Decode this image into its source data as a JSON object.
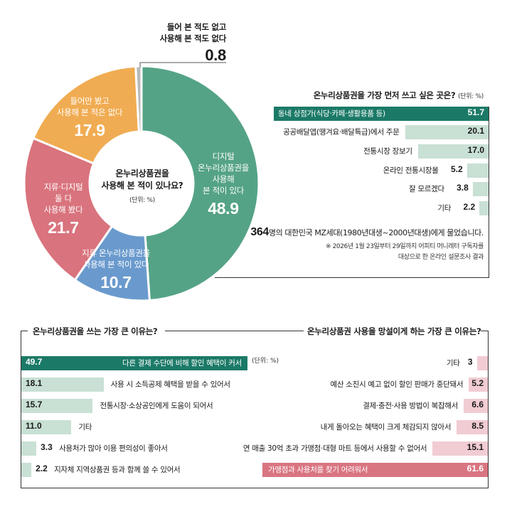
{
  "donut": {
    "center_question_line1": "온누리상품권을",
    "center_question_line2": "사용해 본 적이 있나요?",
    "unit": "(단위: %)",
    "slices": [
      {
        "label_lines": [
          "디지털",
          "온누리상품권을",
          "사용해",
          "본 적이 있다"
        ],
        "value": "48.9",
        "color": "#55a386"
      },
      {
        "label_lines": [
          "지류 온누리상품권을",
          "사용해 본 적이 있다"
        ],
        "value": "10.7",
        "color": "#6a9acd"
      },
      {
        "label_lines": [
          "지류·디지털",
          "둘 다",
          "사용해 봤다"
        ],
        "value": "21.7",
        "color": "#d9737d"
      },
      {
        "label_lines": [
          "들어만 봤고",
          "사용해 본 적은 없다"
        ],
        "value": "17.9",
        "color": "#f0ac52"
      },
      {
        "label_lines": [
          "들어 본 적도 없고",
          "사용해 본 적도 없다"
        ],
        "value": "0.8",
        "color": "#b9b9b9"
      }
    ]
  },
  "first_use": {
    "title": "온누리상품권을 가장 먼저 쓰고 싶은 곳은?",
    "unit": "(단위: %)",
    "items": [
      {
        "label": "동네 상점가(식당·카페·생활용품 등)",
        "value": "51.7"
      },
      {
        "label": "공공배달앱(땡겨요·배달특급)에서 주문",
        "value": "20.1"
      },
      {
        "label": "전통시장 장보기",
        "value": "17.0"
      },
      {
        "label": "온라인 전통시장몰",
        "value": "5.2"
      },
      {
        "label": "잘 모르겠다",
        "value": "3.8"
      },
      {
        "label": "기타",
        "value": "2.2"
      }
    ]
  },
  "survey_note": {
    "count": "364",
    "headline": "명의 대한민국 MZ세대(1980년대생~2000년대생)에게 물었습니다.",
    "note_line1": "※ 2026년 1월 23일부터 29일까지 어피티 머니레터 구독자를",
    "note_line2": "대상으로 한 온라인 설문조사 결과"
  },
  "use_reasons": {
    "title": "온누리상품권을 쓰는 가장 큰 이유는?",
    "unit": "(단위: %)",
    "items": [
      {
        "label": "다른 결제 수단에 비해 할인 혜택이 커서",
        "value": "49.7"
      },
      {
        "label": "사용 시 소득공제 혜택을 받을 수 있어서",
        "value": "18.1"
      },
      {
        "label": "전통시장·소상공인에게 도움이 되어서",
        "value": "15.7"
      },
      {
        "label": "기타",
        "value": "11.0"
      },
      {
        "label": "사용처가 많아 이용 편의성이 좋아서",
        "value": "3.3"
      },
      {
        "label": "지자체 지역상품권 등과 함께 쓸 수 있어서",
        "value": "2.2"
      }
    ]
  },
  "hesitate_reasons": {
    "title": "온누리상품권 사용을 망설이게 하는 가장 큰 이유는?",
    "items": [
      {
        "label": "기타",
        "value": "3"
      },
      {
        "label": "예산 소진시 예고 없이 할인 판매가 중단돼서",
        "value": "5.2"
      },
      {
        "label": "결제·충전·사용 방법이 복잡해서",
        "value": "6.6"
      },
      {
        "label": "내게 돌아오는 혜택이 크게 체감되지 않아서",
        "value": "8.5"
      },
      {
        "label": "연 매출 30억 초과 가맹점·대형 마트 등에서 사용할 수 없어서",
        "value": "15.1"
      },
      {
        "label": "가맹점과 사용처를 찾기 어려워서",
        "value": "61.6"
      }
    ]
  },
  "colors": {
    "green_dark": "#1b7a67",
    "green_light": "#c9e0d5",
    "pink_dark": "#d97581",
    "pink_light": "#f1ccd3"
  },
  "chart_data": [
    {
      "type": "pie",
      "title": "온누리상품권을 사용해 본 적이 있나요? (단위: %)",
      "categories": [
        "디지털 온누리상품권을 사용해 본 적이 있다",
        "지류 온누리상품권을 사용해 본 적이 있다",
        "지류·디지털 둘 다 사용해 봤다",
        "들어만 봤고 사용해 본 적은 없다",
        "들어 본 적도 없고 사용해 본 적도 없다"
      ],
      "values": [
        48.9,
        10.7,
        21.7,
        17.9,
        0.8
      ],
      "colors": [
        "#55a386",
        "#6a9acd",
        "#d9737d",
        "#f0ac52",
        "#b9b9b9"
      ],
      "donut": true
    },
    {
      "type": "bar",
      "orientation": "horizontal",
      "title": "온누리상품권을 가장 먼저 쓰고 싶은 곳은? (단위: %)",
      "categories": [
        "동네 상점가(식당·카페·생활용품 등)",
        "공공배달앱(땡겨요·배달특급)에서 주문",
        "전통시장 장보기",
        "온라인 전통시장몰",
        "잘 모르겠다",
        "기타"
      ],
      "values": [
        51.7,
        20.1,
        17.0,
        5.2,
        3.8,
        2.2
      ]
    },
    {
      "type": "bar",
      "orientation": "horizontal",
      "title": "온누리상품권을 쓰는 가장 큰 이유는? (단위: %)",
      "categories": [
        "다른 결제 수단에 비해 할인 혜택이 커서",
        "사용 시 소득공제 혜택을 받을 수 있어서",
        "전통시장·소상공인에게 도움이 되어서",
        "기타",
        "사용처가 많아 이용 편의성이 좋아서",
        "지자체 지역상품권 등과 함께 쓸 수 있어서"
      ],
      "values": [
        49.7,
        18.1,
        15.7,
        11.0,
        3.3,
        2.2
      ]
    },
    {
      "type": "bar",
      "orientation": "horizontal",
      "title": "온누리상품권 사용을 망설이게 하는 가장 큰 이유는? (단위: %)",
      "categories": [
        "기타",
        "예산 소진시 예고 없이 할인 판매가 중단돼서",
        "결제·충전·사용 방법이 복잡해서",
        "내게 돌아오는 혜택이 크게 체감되지 않아서",
        "연 매출 30억 초과 가맹점·대형 마트 등에서 사용할 수 없어서",
        "가맹점과 사용처를 찾기 어려워서"
      ],
      "values": [
        3,
        5.2,
        6.6,
        8.5,
        15.1,
        61.6
      ]
    }
  ]
}
